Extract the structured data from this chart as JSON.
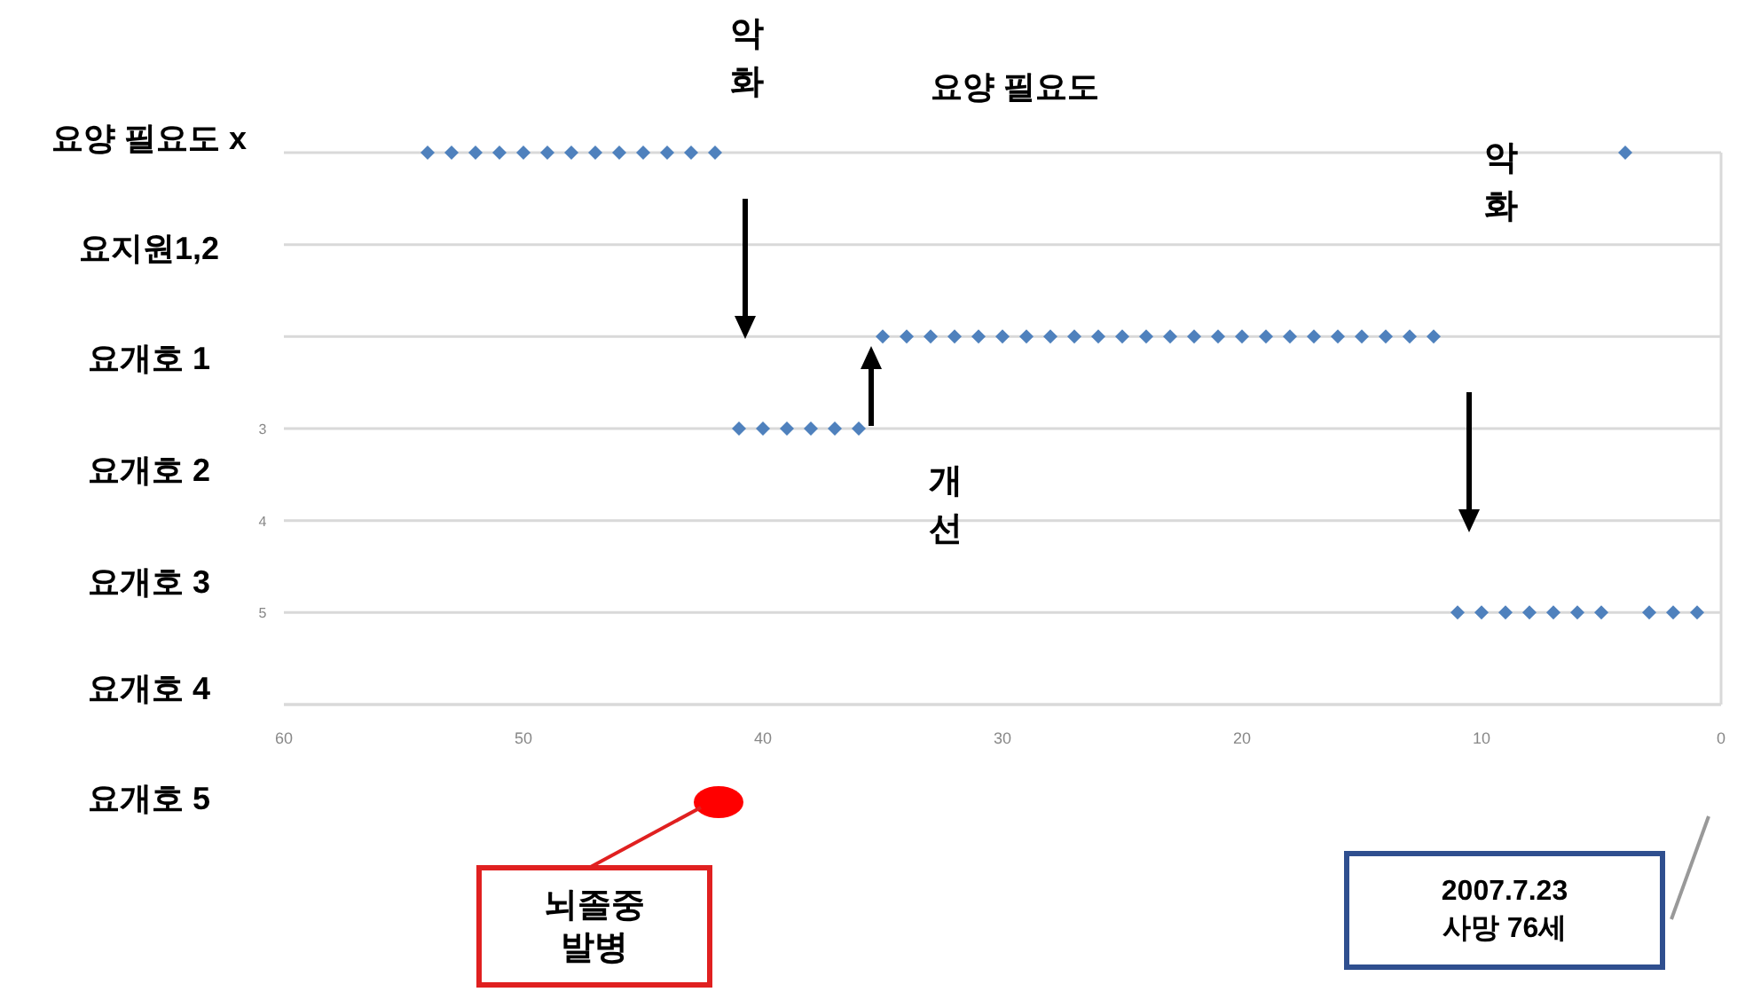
{
  "chart_data": {
    "type": "scatter",
    "title": "요양 필요도",
    "marker": "diamond",
    "grid": "y",
    "series": [
      {
        "color": "#4f81bd",
        "x": [
          54,
          53,
          52,
          51,
          50,
          49,
          48,
          47,
          46,
          45,
          44,
          43,
          42,
          41,
          40,
          39,
          38,
          37,
          36,
          35,
          34,
          33,
          32,
          31,
          30,
          29,
          28,
          27,
          26,
          25,
          24,
          23,
          22,
          21,
          20,
          19,
          18,
          17,
          16,
          15,
          14,
          13,
          12,
          11,
          10,
          9,
          8,
          7,
          6,
          5,
          4,
          3,
          2,
          1
        ],
        "values": [
          0,
          0,
          0,
          0,
          0,
          0,
          0,
          0,
          0,
          0,
          0,
          0,
          0,
          3,
          3,
          3,
          3,
          3,
          3,
          2,
          2,
          2,
          2,
          2,
          2,
          2,
          2,
          2,
          2,
          2,
          2,
          2,
          2,
          2,
          2,
          2,
          2,
          2,
          2,
          2,
          2,
          2,
          2,
          5,
          5,
          5,
          5,
          5,
          5,
          5,
          0,
          5,
          5,
          5
        ]
      }
    ],
    "xlim": [
      60,
      0
    ],
    "xticks": [
      60,
      50,
      40,
      30,
      20,
      10,
      0
    ],
    "ylim": [
      6,
      0
    ],
    "yticks": [
      {
        "value": 0,
        "label": null
      },
      {
        "value": 1,
        "label": null
      },
      {
        "value": 2,
        "label": null
      },
      3,
      4,
      5,
      {
        "value": 6,
        "label": null
      }
    ],
    "annotations": [
      "요양 필요도 x",
      "요지원1,2",
      "요개호 1",
      "요개호 2",
      "요개호 3",
      "요개호 4",
      "요개호 5",
      "악\n화",
      "개\n선",
      "악\n화",
      "뇌졸중\n발병",
      "2007.7.23\n사망 76세"
    ]
  }
}
